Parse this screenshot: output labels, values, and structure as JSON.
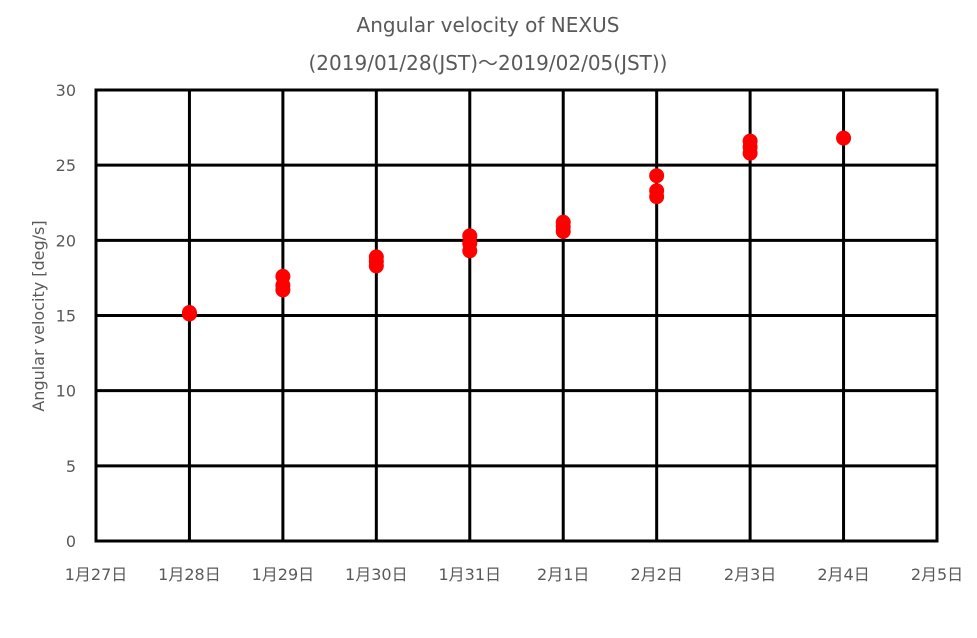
{
  "chart_data": {
    "type": "scatter",
    "title_line1": "Angular velocity of NEXUS",
    "title_line2": "(2019/01/28(JST)～2019/02/05(JST))",
    "xlabel": "",
    "ylabel": "Angular velocity [deg/s]",
    "x_ticks": [
      "1月27日",
      "1月28日",
      "1月29日",
      "1月30日",
      "1月31日",
      "2月1日",
      "2月2日",
      "2月3日",
      "2月4日",
      "2月5日"
    ],
    "y_ticks": [
      "0",
      "5",
      "10",
      "15",
      "20",
      "25",
      "30"
    ],
    "xlim": [
      "2019-01-27",
      "2019-02-05"
    ],
    "ylim": [
      0,
      30
    ],
    "grid": true,
    "legend": "none",
    "marker_color": "#ff0000",
    "series": [
      {
        "points": [
          {
            "x": "2019-01-28",
            "y": 15.1
          },
          {
            "x": "2019-01-28",
            "y": 15.2
          },
          {
            "x": "2019-01-29",
            "y": 16.7
          },
          {
            "x": "2019-01-29",
            "y": 17.0
          },
          {
            "x": "2019-01-29",
            "y": 17.6
          },
          {
            "x": "2019-01-30",
            "y": 18.3
          },
          {
            "x": "2019-01-30",
            "y": 18.6
          },
          {
            "x": "2019-01-30",
            "y": 18.9
          },
          {
            "x": "2019-01-31",
            "y": 19.3
          },
          {
            "x": "2019-01-31",
            "y": 19.8
          },
          {
            "x": "2019-01-31",
            "y": 20.3
          },
          {
            "x": "2019-02-01",
            "y": 20.6
          },
          {
            "x": "2019-02-01",
            "y": 20.9
          },
          {
            "x": "2019-02-01",
            "y": 21.2
          },
          {
            "x": "2019-02-02",
            "y": 22.9
          },
          {
            "x": "2019-02-02",
            "y": 23.3
          },
          {
            "x": "2019-02-02",
            "y": 24.3
          },
          {
            "x": "2019-02-03",
            "y": 25.8
          },
          {
            "x": "2019-02-03",
            "y": 26.2
          },
          {
            "x": "2019-02-03",
            "y": 26.6
          },
          {
            "x": "2019-02-04",
            "y": 26.8
          }
        ]
      }
    ]
  }
}
